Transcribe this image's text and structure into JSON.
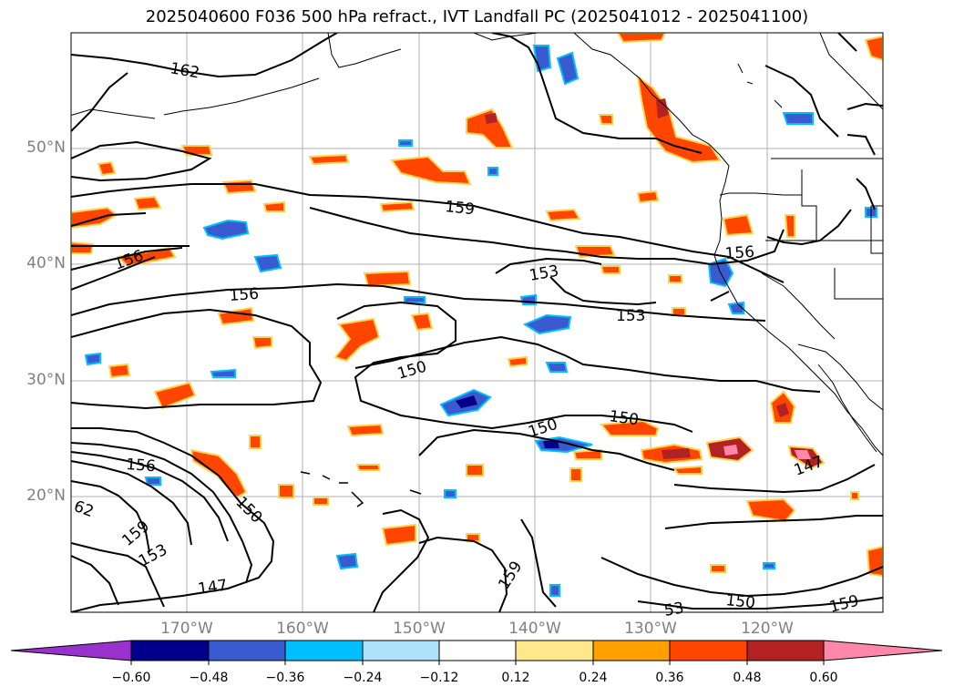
{
  "title": "2025040600 F036 500 hPa refract., IVT Landfall PC (2025041012 - 2025041100)",
  "axes": {
    "latitude_labels": [
      "50°N",
      "40°N",
      "30°N",
      "20°N"
    ],
    "longitude_labels": [
      "170°W",
      "160°W",
      "150°W",
      "140°W",
      "130°W",
      "120°W"
    ],
    "lat_range": [
      10,
      60
    ],
    "lon_range": [
      -180,
      -110
    ],
    "gridlines": true
  },
  "contour_labels": [
    "162",
    "159",
    "156",
    "156",
    "153",
    "156",
    "153",
    "150",
    "150",
    "150",
    "147",
    "156",
    "150",
    "159",
    "153",
    "147",
    "150",
    "159",
    "53",
    "159",
    "62"
  ],
  "colorbar": {
    "tick_labels": [
      "−0.60",
      "−0.48",
      "−0.36",
      "−0.24",
      "−0.12",
      "0.12",
      "0.24",
      "0.36",
      "0.48",
      "0.60"
    ],
    "colors": [
      "#9932CC",
      "#00008B",
      "#3A5BCF",
      "#00BFFF",
      "#ADE2FA",
      "#FFFFFF",
      "#FFE88C",
      "#FFA000",
      "#FF4500",
      "#B22222",
      "#FF88AA"
    ],
    "extend": "both"
  }
}
